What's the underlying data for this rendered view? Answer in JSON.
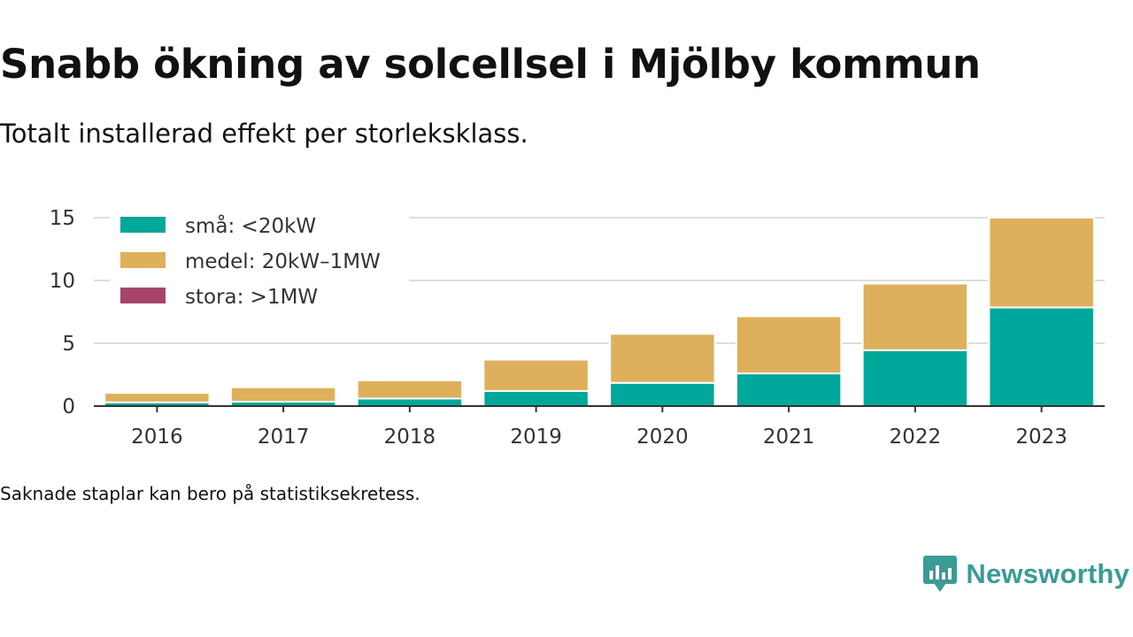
{
  "header": {
    "title": "Snabb ökning av solcellsel i Mjölby kommun",
    "subtitle": "Totalt installerad effekt per storleksklass."
  },
  "footer": {
    "note": "Saknade staplar kan bero på statistiksekretess.",
    "brand": "Newsworthy"
  },
  "colors": {
    "small": "#00a89c",
    "medium": "#deb05c",
    "large": "#a8446b",
    "brand": "#3a9b97"
  },
  "chart_data": {
    "type": "bar",
    "stacked": true,
    "categories": [
      "2016",
      "2017",
      "2018",
      "2019",
      "2020",
      "2021",
      "2022",
      "2023"
    ],
    "series": [
      {
        "name": "små: <20kW",
        "color": "#00a89c",
        "values": [
          0.3,
          0.35,
          0.6,
          1.2,
          1.85,
          2.6,
          4.45,
          7.85
        ]
      },
      {
        "name": "medel: 20kW–1MW",
        "color": "#deb05c",
        "values": [
          0.75,
          1.15,
          1.45,
          2.5,
          3.9,
          4.55,
          5.3,
          7.15
        ]
      },
      {
        "name": "stora: >1MW",
        "color": "#a8446b",
        "values": [
          0,
          0,
          0,
          0,
          0,
          0,
          0,
          0
        ]
      }
    ],
    "ylim": [
      0,
      15
    ],
    "yticks": [
      0,
      5,
      10,
      15
    ],
    "grid": true,
    "legend": "top-left"
  }
}
